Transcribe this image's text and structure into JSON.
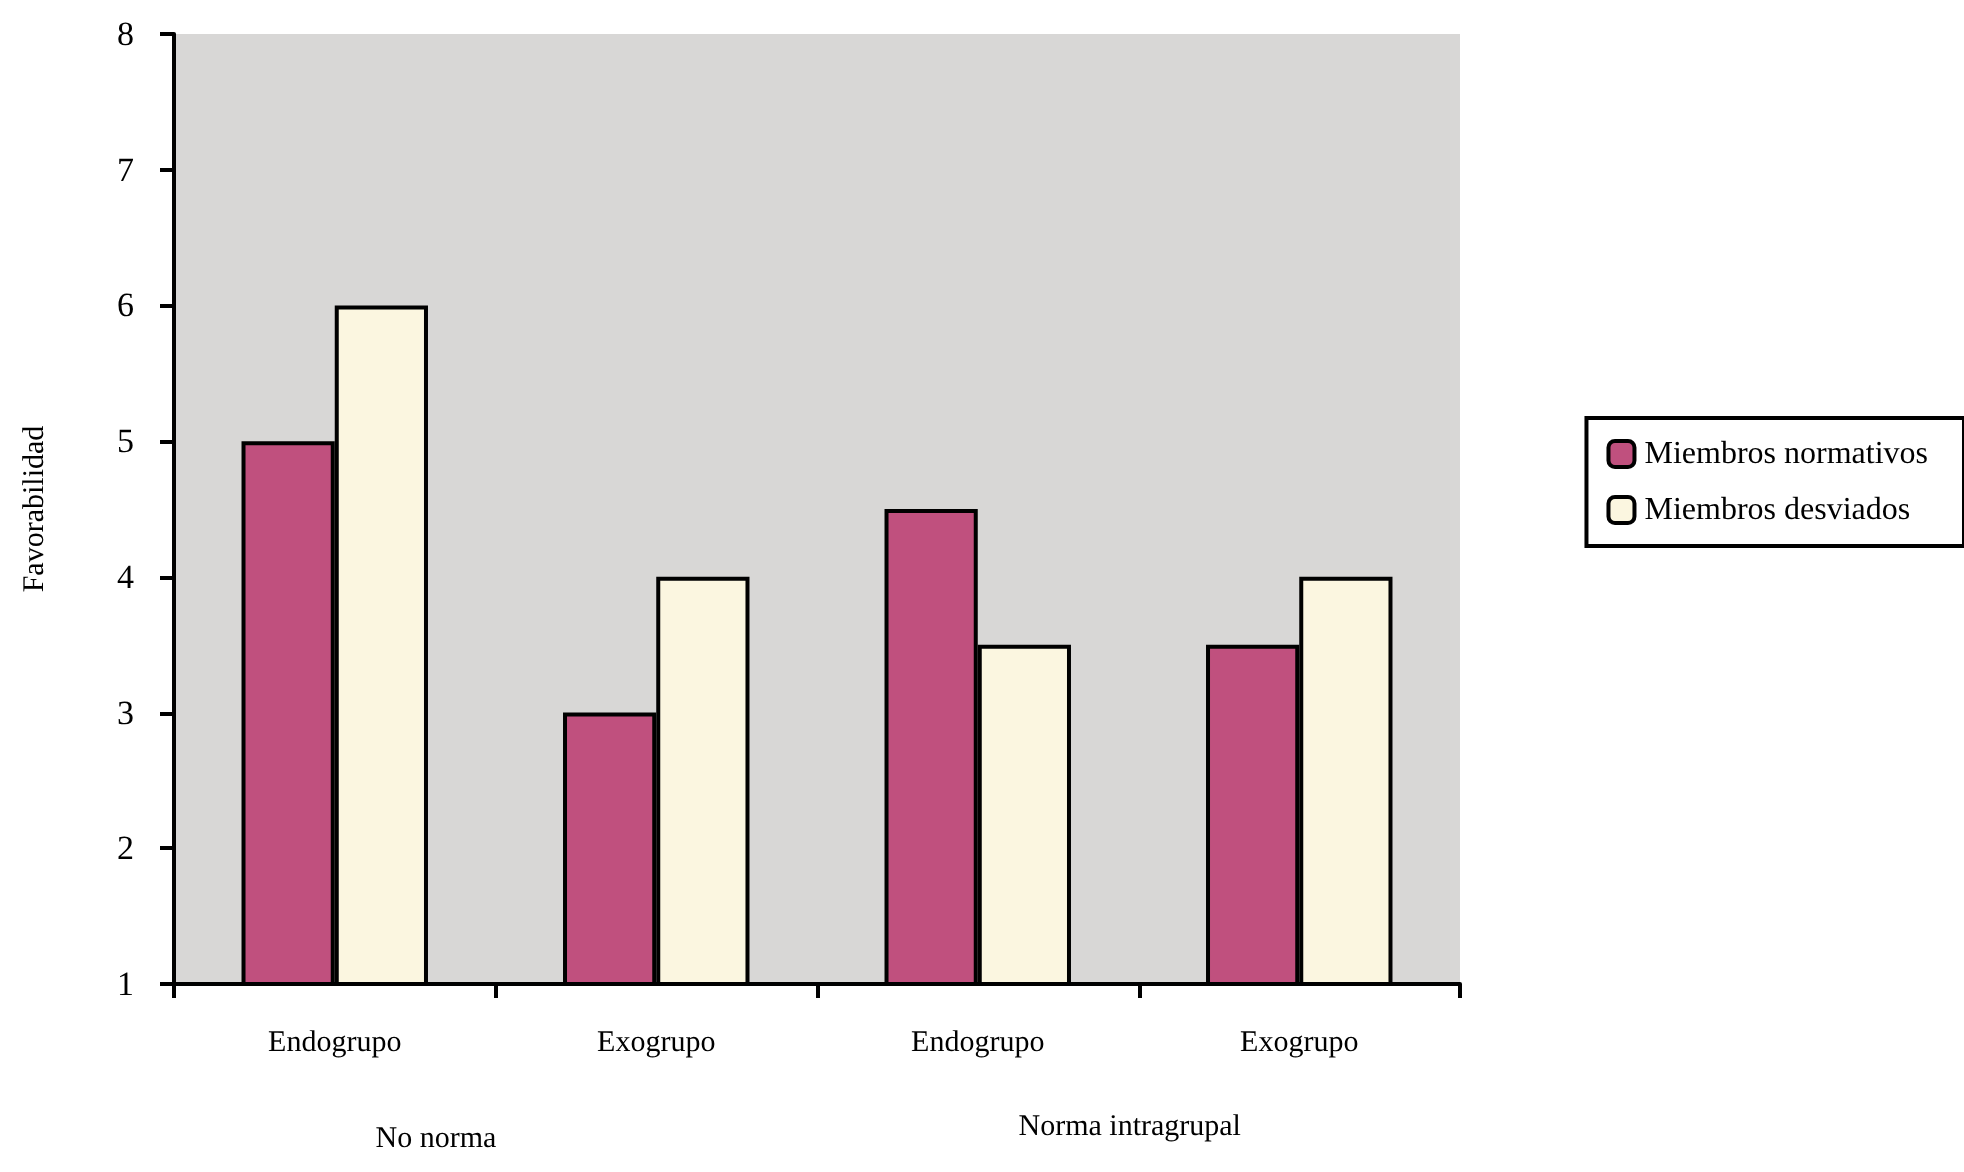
{
  "chart_data": {
    "type": "bar",
    "ylabel": "Favorabilidad",
    "categories": [
      "Endogrupo",
      "Exogrupo",
      "Endogrupo",
      "Exogrupo"
    ],
    "series": [
      {
        "name": "Miembros normativos",
        "color": "#c0507e",
        "values": [
          5,
          3,
          4.5,
          3.5
        ]
      },
      {
        "name": "Miembros desviados",
        "color": "#fbf6e0",
        "values": [
          6,
          4,
          3.5,
          4
        ]
      }
    ],
    "ylim": [
      1,
      8
    ],
    "yticks": [
      1,
      2,
      3,
      4,
      5,
      6,
      7,
      8
    ],
    "grid": false,
    "legend": "right",
    "annotations": [
      "No norma",
      "Norma intragrupal"
    ]
  }
}
